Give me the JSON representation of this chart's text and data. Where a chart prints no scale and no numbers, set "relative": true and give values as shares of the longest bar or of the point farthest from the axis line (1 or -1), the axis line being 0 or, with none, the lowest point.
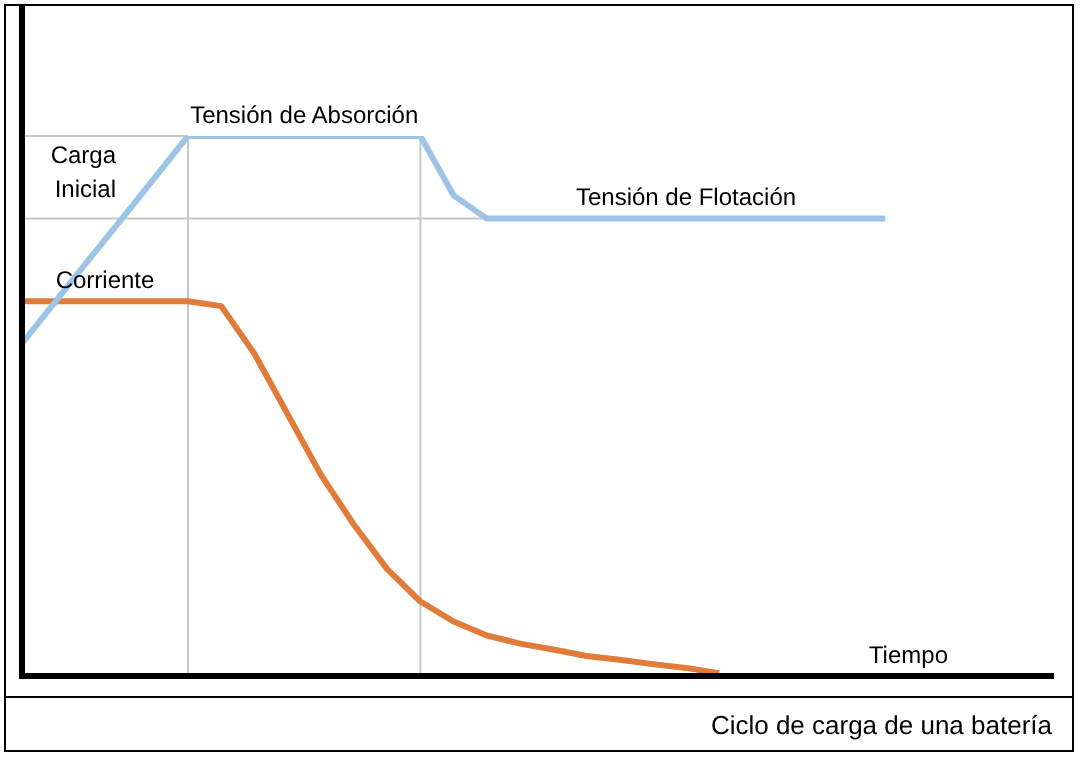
{
  "chart_data": {
    "type": "line",
    "relative": true,
    "xlabel": "Tiempo",
    "annotations": [
      "Ciclo de carga de una batería"
    ],
    "categories": [
      null,
      null,
      null,
      null,
      null,
      null,
      null,
      null,
      null,
      null,
      null,
      null,
      null,
      null,
      null,
      null,
      null,
      null,
      null,
      null,
      null,
      null,
      null,
      null,
      null,
      null,
      null,
      null,
      null,
      null,
      null
    ],
    "ref_lines": [
      {
        "axis": "y",
        "value": 1,
        "color": "#c8c8c8"
      },
      {
        "axis": "y",
        "value": 0.847,
        "color": "#c8c8c8"
      }
    ],
    "series": [
      {
        "name": "Carga Inicial",
        "color": "#9dc3e6",
        "values": [
          0.616,
          0.693,
          0.77,
          0.846,
          0.923,
          1,
          null,
          null,
          null,
          null,
          null,
          null,
          null,
          null,
          null,
          null,
          null,
          null,
          null,
          null,
          null,
          null,
          null,
          null,
          null,
          null,
          null,
          null,
          null,
          null,
          null
        ]
      },
      {
        "name": "Tensión de Absorción",
        "color": "#9dc3e6",
        "values": [
          null,
          null,
          null,
          null,
          null,
          1,
          1,
          1,
          1,
          1,
          1,
          1,
          1,
          null,
          null,
          null,
          null,
          null,
          null,
          null,
          null,
          null,
          null,
          null,
          null,
          null,
          null,
          null,
          null,
          null,
          null
        ]
      },
      {
        "name": "Tensión de Flotación",
        "color": "#9dc3e6",
        "values": [
          null,
          null,
          null,
          null,
          null,
          null,
          null,
          null,
          null,
          null,
          null,
          null,
          1,
          0.89,
          0.847,
          0.847,
          0.847,
          0.847,
          0.847,
          0.847,
          0.847,
          0.847,
          0.847,
          0.847,
          0.847,
          0.847,
          0.847,
          null,
          null,
          null,
          null
        ]
      },
      {
        "name": "Corriente",
        "color": "#e07b39",
        "values": [
          0.694,
          0.694,
          0.694,
          0.694,
          0.694,
          0.694,
          0.685,
          0.597,
          0.485,
          0.373,
          0.28,
          0.198,
          0.138,
          0.101,
          0.075,
          0.06,
          0.049,
          0.037,
          0.03,
          0.022,
          0.015,
          0.005,
          null,
          null,
          null,
          null,
          null,
          null,
          null,
          null,
          null
        ]
      }
    ]
  }
}
